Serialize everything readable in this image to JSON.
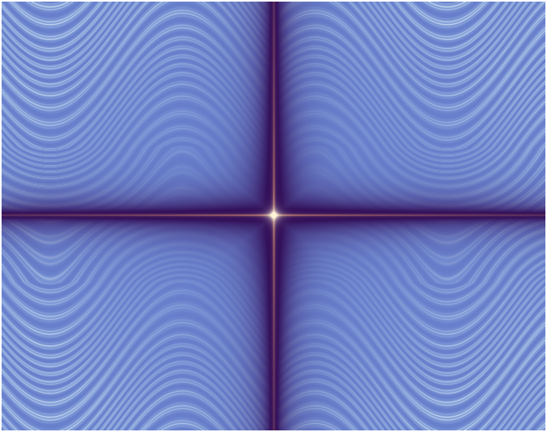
{
  "image": {
    "subject": "symmetric-wave-fractal-render",
    "colors": {
      "light_stripe": "#d6e4f2",
      "mid_blue": "#7c9bd8",
      "deep_blue": "#5a6cc4",
      "dark_purple": "#33105a",
      "axis_glow": "#f2a070",
      "center_glow": "#fff4d8"
    }
  }
}
